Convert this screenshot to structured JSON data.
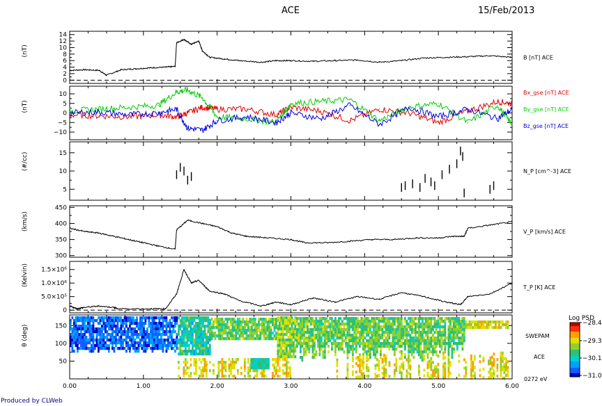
{
  "header": {
    "spacecraft": "ACE",
    "date": "15/Feb/2013"
  },
  "footer": {
    "credit": "Produced by CLWeb"
  },
  "chart_data": [
    {
      "type": "line",
      "id": "b_total",
      "ylabel": "(nT)",
      "ylim": [
        -1,
        15
      ],
      "yticks": [
        0,
        2,
        4,
        6,
        8,
        10,
        12,
        14
      ],
      "ytick_labels": [
        "0",
        "2",
        "4",
        "6",
        "8",
        "10",
        "12",
        "14"
      ],
      "zero_line": true,
      "series": [
        {
          "name": "B [nT] ACE",
          "color": "#000000",
          "x": [
            0.0,
            0.2,
            0.4,
            0.5,
            0.7,
            0.9,
            1.1,
            1.3,
            1.43,
            1.45,
            1.55,
            1.65,
            1.75,
            1.8,
            1.9,
            2.1,
            2.3,
            2.6,
            2.8,
            3.0,
            3.3,
            3.6,
            3.9,
            4.2,
            4.5,
            4.8,
            5.1,
            5.4,
            5.7,
            6.0
          ],
          "y": [
            3.0,
            3.2,
            3.0,
            1.5,
            3.2,
            3.5,
            3.8,
            4.0,
            4.2,
            11.5,
            12.5,
            11.0,
            12.0,
            9.0,
            7.0,
            6.5,
            6.0,
            5.5,
            6.0,
            6.0,
            5.8,
            6.0,
            6.2,
            5.5,
            6.0,
            6.8,
            7.0,
            7.2,
            7.5,
            7.0
          ]
        }
      ]
    },
    {
      "type": "line",
      "id": "b_components",
      "ylabel": "(nT)",
      "ylim": [
        -14,
        14
      ],
      "yticks": [
        -10,
        -5,
        0,
        5,
        10
      ],
      "ytick_labels": [
        "−10",
        "−5",
        "0",
        "5",
        "10"
      ],
      "series": [
        {
          "name": "Bx_gse [nT] ACE",
          "color": "#e00000",
          "x": [
            0.0,
            0.4,
            0.8,
            1.2,
            1.45,
            1.6,
            1.8,
            2.0,
            2.4,
            2.8,
            3.0,
            3.4,
            3.8,
            4.2,
            4.6,
            5.0,
            5.4,
            5.8,
            6.0
          ],
          "y": [
            -1.0,
            -1.5,
            -2.0,
            -1.0,
            -2.0,
            0.0,
            3.0,
            2.0,
            2.0,
            -1.0,
            3.0,
            1.0,
            -4.0,
            2.0,
            0.0,
            -5.0,
            1.0,
            6.0,
            5.0
          ]
        },
        {
          "name": "By_gse [nT] ACE",
          "color": "#00cc00",
          "x": [
            0.0,
            0.4,
            0.8,
            1.2,
            1.45,
            1.6,
            1.8,
            2.0,
            2.4,
            2.8,
            3.0,
            3.4,
            3.8,
            4.2,
            4.6,
            5.0,
            5.4,
            5.8,
            6.0
          ],
          "y": [
            1.0,
            2.0,
            3.0,
            4.0,
            11.0,
            12.0,
            8.0,
            -2.0,
            -3.0,
            -5.0,
            5.0,
            6.0,
            7.0,
            -4.0,
            3.0,
            5.0,
            -5.0,
            4.0,
            -6.0
          ]
        },
        {
          "name": "Bz_gse [nT] ACE",
          "color": "#0000e0",
          "x": [
            0.0,
            0.4,
            0.8,
            1.2,
            1.45,
            1.6,
            1.8,
            2.0,
            2.4,
            2.8,
            3.0,
            3.4,
            3.8,
            4.2,
            4.6,
            5.0,
            5.4,
            5.8,
            6.0
          ],
          "y": [
            0.0,
            0.5,
            -1.0,
            0.0,
            2.0,
            -8.0,
            -9.0,
            -4.0,
            -2.0,
            -5.0,
            0.0,
            -3.0,
            4.0,
            -6.0,
            3.0,
            -2.0,
            2.0,
            -3.0,
            2.0
          ]
        }
      ]
    },
    {
      "type": "scatter",
      "id": "density",
      "ylabel": "(#/cc)",
      "ylim": [
        2,
        18
      ],
      "yticks": [
        5,
        10,
        15
      ],
      "ytick_labels": [
        "5",
        "10",
        "15"
      ],
      "series": [
        {
          "name": "N_P [cm^-3] ACE",
          "color": "#000000",
          "x": [
            1.45,
            1.5,
            1.55,
            1.6,
            1.65,
            4.5,
            4.55,
            4.65,
            4.75,
            4.82,
            4.9,
            4.95,
            5.05,
            5.15,
            5.25,
            5.3,
            5.33,
            5.35,
            5.7,
            5.75
          ],
          "y": [
            9.0,
            11.0,
            10.0,
            7.5,
            8.5,
            5.5,
            6.0,
            6.5,
            5.5,
            8.0,
            7.0,
            6.0,
            9.0,
            10.5,
            12.0,
            15.5,
            14.0,
            4.0,
            5.0,
            6.0
          ]
        }
      ]
    },
    {
      "type": "line",
      "id": "velocity",
      "ylabel": "(km/s)",
      "ylim": [
        295,
        455
      ],
      "yticks": [
        300,
        350,
        400,
        450
      ],
      "ytick_labels": [
        "300",
        "350",
        "400",
        "450"
      ],
      "series": [
        {
          "name": "V_P [km/s] ACE",
          "color": "#000000",
          "x": [
            0.0,
            0.2,
            0.4,
            0.6,
            0.8,
            1.0,
            1.2,
            1.43,
            1.45,
            1.6,
            1.8,
            2.0,
            2.2,
            2.4,
            2.7,
            3.0,
            3.2,
            3.5,
            3.8,
            4.1,
            4.4,
            4.7,
            5.0,
            5.2,
            5.35,
            5.4,
            5.7,
            6.0
          ],
          "y": [
            385,
            375,
            370,
            360,
            350,
            340,
            330,
            320,
            380,
            410,
            400,
            390,
            370,
            360,
            355,
            350,
            340,
            340,
            345,
            350,
            350,
            355,
            355,
            360,
            360,
            385,
            395,
            405
          ]
        }
      ]
    },
    {
      "type": "line",
      "id": "temperature",
      "ylabel": "(Kelvin)",
      "ylim": [
        -100000,
        1800000
      ],
      "yticks": [
        0,
        500000,
        1000000,
        1500000
      ],
      "ytick_labels": [
        "0",
        "5.0×10⁵",
        "1.0×10⁶",
        "1.5×10⁶"
      ],
      "zero_line": true,
      "series": [
        {
          "name": "T_P [K] ACE",
          "color": "#000000",
          "x": [
            0.0,
            0.1,
            0.2,
            0.4,
            0.6,
            0.65,
            1.1,
            1.3,
            1.45,
            1.55,
            1.65,
            1.75,
            1.9,
            2.1,
            2.3,
            2.6,
            2.8,
            3.0,
            3.3,
            3.6,
            3.9,
            4.2,
            4.5,
            4.8,
            5.1,
            5.3,
            5.4,
            5.7,
            6.0
          ],
          "y": [
            150000,
            50000,
            100000,
            150000,
            100000,
            50000,
            50000,
            50000,
            600000,
            1500000,
            1000000,
            1100000,
            700000,
            600000,
            350000,
            150000,
            300000,
            200000,
            450000,
            300000,
            500000,
            400000,
            650000,
            500000,
            300000,
            200000,
            500000,
            600000,
            1000000
          ]
        }
      ]
    },
    {
      "type": "heatmap",
      "id": "swepam_theta",
      "ylabel": "θ (deg)",
      "ylim": [
        0,
        180
      ],
      "yticks": [
        50,
        100,
        150
      ],
      "ytick_labels": [
        "50",
        "100",
        "150"
      ],
      "side_labels": [
        "SWEPAM",
        "ACE",
        "0272 eV"
      ],
      "colorbar": {
        "title": "Log PSD",
        "min": -31.0,
        "max": -28.4,
        "tick_labels": [
          "−28.4",
          "−29.3",
          "−30.1",
          "−31.0"
        ]
      }
    }
  ],
  "x_axis": {
    "xlim": [
      0,
      6
    ],
    "ticks": [
      0,
      1,
      2,
      3,
      4,
      5,
      6
    ],
    "tick_labels": [
      "0.00",
      "1.00",
      "2.00",
      "3.00",
      "4.00",
      "5.00",
      "6.00"
    ]
  }
}
